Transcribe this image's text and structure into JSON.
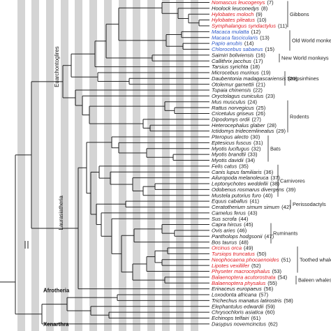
{
  "colors": {
    "band": "#d4d4d4",
    "branch": "#222222",
    "label_default": "#1a1a1a",
    "label_red": "#e0191f",
    "label_blue": "#2b57c9"
  },
  "tips": [
    {
      "name": "Nomascus leucogenys",
      "num": "(7)",
      "color": "red",
      "partial": true
    },
    {
      "name": "Hoolock leuconedys",
      "num": "(8)",
      "color": "default"
    },
    {
      "name": "Hylobates moloch",
      "num": "(9)",
      "color": "red"
    },
    {
      "name": "Hylobates pileatus",
      "num": "(10)",
      "color": "red"
    },
    {
      "name": "Symphalangus syndactylus",
      "num": "(11)",
      "color": "red"
    },
    {
      "name": "Macaca mulatta",
      "num": "(12)",
      "color": "blue"
    },
    {
      "name": "Macaca fascicularis",
      "num": "(13)",
      "color": "blue"
    },
    {
      "name": "Papio anubis",
      "num": "(14)",
      "color": "blue"
    },
    {
      "name": "Chlorocebus sabaeus",
      "num": "(15)",
      "color": "blue"
    },
    {
      "name": "Saimiri boliviensis",
      "num": "(16)",
      "color": "default"
    },
    {
      "name": "Callithrix jacchus",
      "num": "(17)",
      "color": "default"
    },
    {
      "name": "Tarsius syrichta",
      "num": "(18)",
      "color": "default"
    },
    {
      "name": "Microcebus murinus",
      "num": "(19)",
      "color": "default"
    },
    {
      "name": "Daubentonia madagascariensis",
      "num": "(20)",
      "color": "default"
    },
    {
      "name": "Otolemur garnettii",
      "num": "(21)",
      "color": "default"
    },
    {
      "name": "Tupaia chinensis",
      "num": "(22)",
      "color": "default"
    },
    {
      "name": "Oryctolagus cuniculus",
      "num": "(23)",
      "color": "default"
    },
    {
      "name": "Mus musculus",
      "num": "(24)",
      "color": "default"
    },
    {
      "name": "Rattus norvegicus",
      "num": "(25)",
      "color": "default"
    },
    {
      "name": "Cricetulus griseus",
      "num": "(26)",
      "color": "default"
    },
    {
      "name": "Dipodomys ordii",
      "num": "(27)",
      "color": "default"
    },
    {
      "name": "Heterocephalus glaber",
      "num": "(28)",
      "color": "default"
    },
    {
      "name": "Ictidomys tridecemlineatus",
      "num": "(29)",
      "color": "default"
    },
    {
      "name": "Pteropus alecto",
      "num": "(30)",
      "color": "default"
    },
    {
      "name": "Eptesicus fuscus",
      "num": "(31)",
      "color": "default"
    },
    {
      "name": "Myotis lucifugus",
      "num": "(32)",
      "color": "default"
    },
    {
      "name": "Myotis brandtii",
      "num": "(33)",
      "color": "default"
    },
    {
      "name": "Myotis davidii",
      "num": "(34)",
      "color": "default"
    },
    {
      "name": "Felis catus",
      "num": "(35)",
      "color": "default"
    },
    {
      "name": "Canis lupus familiaris",
      "num": "(36)",
      "color": "default"
    },
    {
      "name": "Ailuropoda melanoleuca",
      "num": "(37)",
      "color": "default"
    },
    {
      "name": "Leptonychotes weddellii",
      "num": "(38)",
      "color": "default"
    },
    {
      "name": "Odobenus rosmarus divergens",
      "num": "(39)",
      "color": "default"
    },
    {
      "name": "Mustela putorius furo",
      "num": "(40)",
      "color": "default"
    },
    {
      "name": "Equus caballus",
      "num": "(41)",
      "color": "default"
    },
    {
      "name": "Ceratotherium simum simum",
      "num": "(42)",
      "color": "default"
    },
    {
      "name": "Camelus ferus",
      "num": "(43)",
      "color": "default"
    },
    {
      "name": "Sus scrofa",
      "num": "(44)",
      "color": "default"
    },
    {
      "name": "Capra hircus",
      "num": "(45)",
      "color": "default"
    },
    {
      "name": "Ovis aries",
      "num": "(46)",
      "color": "default"
    },
    {
      "name": "Pantholops hodgsonii",
      "num": "(47)",
      "color": "default"
    },
    {
      "name": "Bos taurus",
      "num": "(48)",
      "color": "default"
    },
    {
      "name": "Orcinus orca",
      "num": "(49)",
      "color": "red"
    },
    {
      "name": "Tursiops truncatus",
      "num": "(50)",
      "color": "red"
    },
    {
      "name": "Neophocaena phocaenoides",
      "num": "(51)",
      "color": "red"
    },
    {
      "name": "Lipotes vexillifer",
      "num": "(52)",
      "color": "red"
    },
    {
      "name": "Physeter macrocephalus",
      "num": "(53)",
      "color": "red"
    },
    {
      "name": "Balaenoptera acutorostrata",
      "num": "(54)",
      "color": "red"
    },
    {
      "name": "Balaenoptera physalus",
      "num": "(55)",
      "color": "red"
    },
    {
      "name": "Erinaceus europaeus",
      "num": "(56)",
      "color": "default"
    },
    {
      "name": "Loxodonta africana",
      "num": "(57)",
      "color": "default"
    },
    {
      "name": "Trichechus manatus latirostris",
      "num": "(58)",
      "color": "default"
    },
    {
      "name": "Elephantulus edwardii",
      "num": "(59)",
      "color": "default"
    },
    {
      "name": "Chrysochloris asiatica",
      "num": "(60)",
      "color": "default"
    },
    {
      "name": "Echinops telfairi",
      "num": "(61)",
      "color": "default"
    },
    {
      "name": "Dasypus novemcinctus",
      "num": "(62)",
      "color": "default"
    }
  ],
  "clades": [
    {
      "label": "Gibbons",
      "from": 0,
      "to": 4
    },
    {
      "label": "Old World monkeys",
      "from": 5,
      "to": 8
    },
    {
      "label": "New World monkeys",
      "from": 9,
      "to": 10
    },
    {
      "label": "Strepsirrhines",
      "from": 12,
      "to": 14
    },
    {
      "label": "Rodents",
      "from": 17,
      "to": 22
    },
    {
      "label": "Bats",
      "from": 23,
      "to": 27
    },
    {
      "label": "Carnivores",
      "from": 28,
      "to": 33
    },
    {
      "label": "Perissodactyls",
      "from": 34,
      "to": 35
    },
    {
      "label": "Ruminants",
      "from": 38,
      "to": 41
    },
    {
      "label": "Toothed whales",
      "from": 42,
      "to": 46
    },
    {
      "label": "Baleen whales",
      "from": 47,
      "to": 48
    }
  ],
  "major_clades": [
    {
      "label": "Euarchontoglires",
      "from": 0,
      "to": 22
    },
    {
      "label": "Laurasiatheria",
      "from": 23,
      "to": 49
    },
    {
      "label": "Afrotheria",
      "from": 50,
      "to": 54
    },
    {
      "label": "Xenarthra",
      "from": 55,
      "to": 55
    }
  ]
}
